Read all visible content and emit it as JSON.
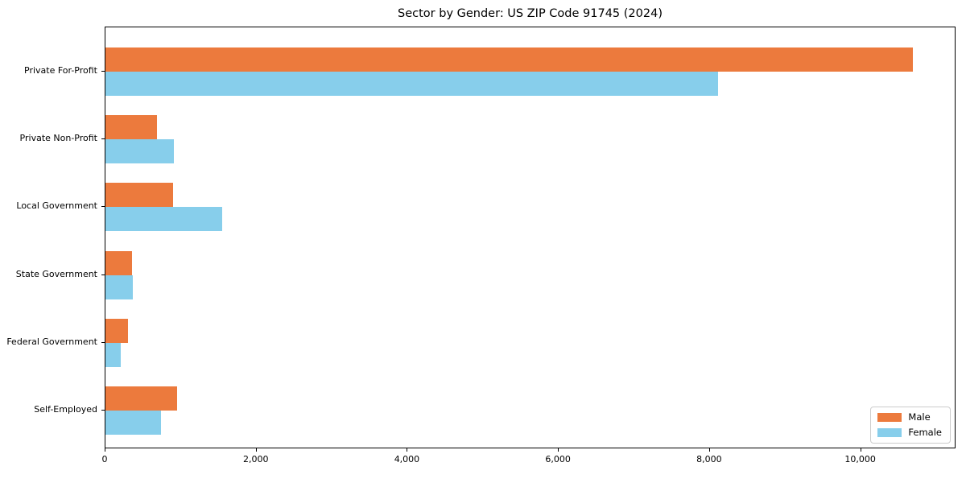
{
  "page": {
    "background_color": "#ffffff",
    "axis_color": "#000000",
    "legend_border_color": "#cccccc"
  },
  "chart_data": {
    "type": "bar",
    "orientation": "horizontal",
    "title": "Sector by Gender: US ZIP Code 91745 (2024)",
    "categories": [
      "Private For-Profit",
      "Private Non-Profit",
      "Local Government",
      "State Government",
      "Federal Government",
      "Self-Employed"
    ],
    "series": [
      {
        "name": "Male",
        "color": "#EC7A3D",
        "values": [
          10690,
          680,
          900,
          350,
          295,
          945
        ]
      },
      {
        "name": "Female",
        "color": "#87CEEB",
        "values": [
          8110,
          910,
          1540,
          360,
          200,
          740
        ]
      }
    ],
    "xlabel": "",
    "ylabel": "",
    "xlim": [
      0,
      11240
    ],
    "xticks": [
      0,
      2000,
      4000,
      6000,
      8000,
      10000
    ],
    "xtick_labels": [
      "0",
      "2,000",
      "4,000",
      "6,000",
      "8,000",
      "10,000"
    ],
    "grid": false,
    "legend_position": "lower right"
  }
}
